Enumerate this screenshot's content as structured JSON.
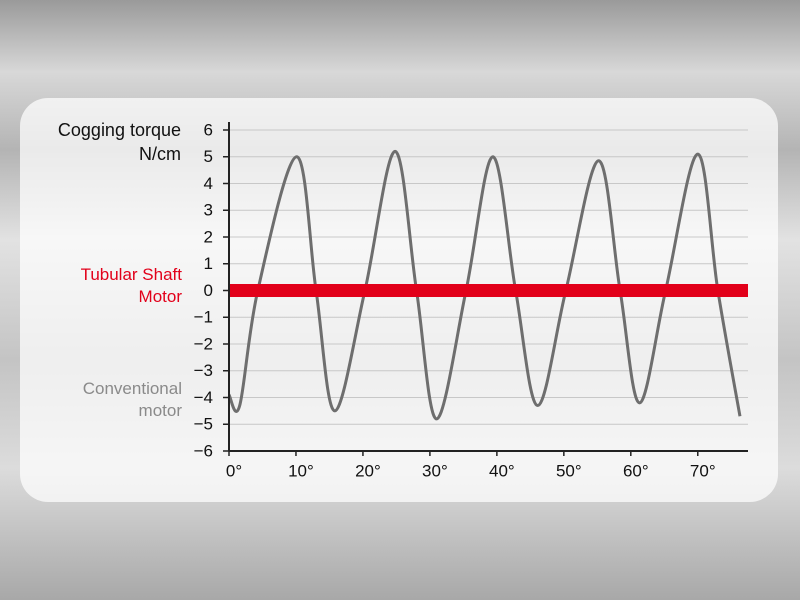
{
  "chart_data": {
    "type": "line",
    "y_label": "Cogging torque",
    "y_unit": "N/cm",
    "xlim": [
      0,
      77.5
    ],
    "ylim": [
      -6,
      6
    ],
    "yticks": [
      {
        "value": -6,
        "label": "−6"
      },
      {
        "value": -5,
        "label": "−5"
      },
      {
        "value": -4,
        "label": "−4"
      },
      {
        "value": -3,
        "label": "−3"
      },
      {
        "value": -2,
        "label": "−2"
      },
      {
        "value": -1,
        "label": "−1"
      },
      0,
      1,
      2,
      3,
      4,
      5,
      6
    ],
    "xticks": [
      {
        "value": 0,
        "label": "0°"
      },
      {
        "value": 10,
        "label": "10°"
      },
      {
        "value": 20,
        "label": "20°"
      },
      {
        "value": 30,
        "label": "30°"
      },
      {
        "value": 40,
        "label": "40°"
      },
      {
        "value": 50,
        "label": "50°"
      },
      {
        "value": 60,
        "label": "60°"
      },
      {
        "value": 70,
        "label": "70°"
      }
    ],
    "grid": true,
    "series": [
      {
        "name": "Tubular Shaft Motor",
        "color": "#e2001a",
        "x": [
          0,
          77.5
        ],
        "values": [
          0,
          0
        ]
      },
      {
        "name": "Conventional motor",
        "color": "#6e6e6e",
        "x": [
          0,
          1.6,
          4.3,
          10.1,
          13,
          15.8,
          20.3,
          24.8,
          28,
          31,
          35.4,
          39.4,
          42.8,
          46.1,
          50.3,
          55.2,
          58.4,
          61.3,
          65.2,
          70,
          73,
          76.3
        ],
        "values": [
          -3.9,
          -4.3,
          0,
          5.0,
          0,
          -4.5,
          0,
          5.2,
          0,
          -4.8,
          0,
          5.0,
          0,
          -4.3,
          0,
          4.85,
          0,
          -4.2,
          0,
          5.1,
          0,
          -4.7
        ]
      }
    ]
  }
}
